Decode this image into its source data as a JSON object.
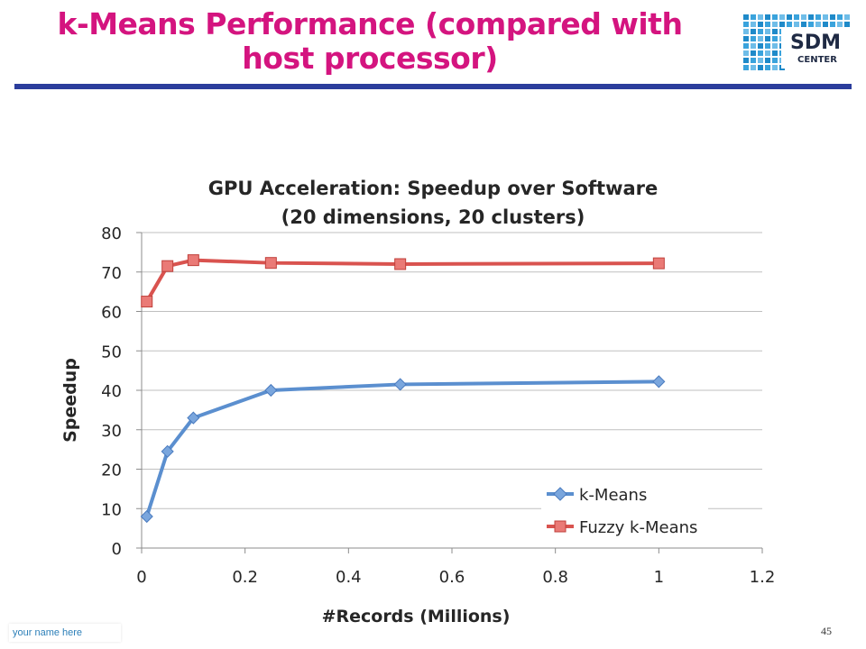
{
  "slide": {
    "title_line1": "k-Means Performance (compared with",
    "title_line2": "host processor)",
    "logo_text": "SDM",
    "logo_subtext": "CENTER",
    "footer_name": "your name here",
    "page_number": "45"
  },
  "colors": {
    "title": "#d4147f",
    "rule": "#2b3d9c",
    "kmeans": "#5b8fcf",
    "fuzzy": "#d9534f"
  },
  "chart_data": {
    "type": "line",
    "title_line1": "GPU Acceleration: Speedup over Software",
    "title_line2": "(20 dimensions, 20 clusters)",
    "xlabel": "#Records (Millions)",
    "ylabel": "Speedup",
    "xlim": [
      0,
      1.2
    ],
    "ylim": [
      0,
      80
    ],
    "xticks": [
      0,
      0.2,
      0.4,
      0.6,
      0.8,
      1,
      1.2
    ],
    "yticks": [
      0,
      10,
      20,
      30,
      40,
      50,
      60,
      70,
      80
    ],
    "grid": "horizontal",
    "legend_position": "bottom-right",
    "series": [
      {
        "name": "k-Means",
        "marker": "diamond",
        "x": [
          0.01,
          0.05,
          0.1,
          0.25,
          0.5,
          1.0
        ],
        "y": [
          8,
          24.5,
          33,
          40,
          41.5,
          42.2
        ]
      },
      {
        "name": "Fuzzy k-Means",
        "marker": "square",
        "x": [
          0.01,
          0.05,
          0.1,
          0.25,
          0.5,
          1.0
        ],
        "y": [
          62.5,
          71.5,
          73,
          72.3,
          72,
          72.2
        ]
      }
    ]
  }
}
